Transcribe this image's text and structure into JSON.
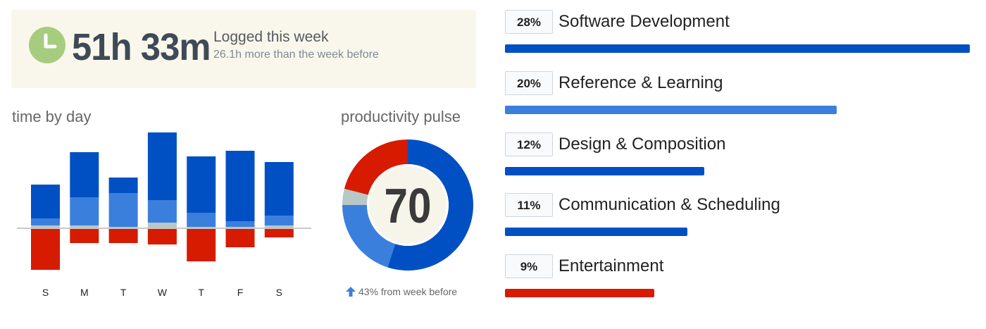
{
  "summary": {
    "total_time": "51h 33m",
    "label": "Logged this week",
    "comparison": "26.1h more than the week before",
    "icon": "clock-icon"
  },
  "time_by_day": {
    "title": "time by day"
  },
  "productivity_pulse": {
    "title": "productivity pulse",
    "score": "70",
    "change_text": "43% from week before",
    "change_icon": "arrow-up-icon"
  },
  "colors": {
    "very_productive": "#0050c4",
    "productive": "#3b7fdd",
    "neutral": "#b9c7c7",
    "unproductive": "#d61b00",
    "summary_bg": "#f9f7ec",
    "clock": "#a6cd7f"
  },
  "chart_data": [
    {
      "type": "bar",
      "stacked": true,
      "title": "time by day",
      "categories": [
        "S",
        "M",
        "T",
        "W",
        "T",
        "F",
        "S"
      ],
      "unit": "hours",
      "series": [
        {
          "key": "very_productive",
          "values": [
            2.4,
            3.2,
            1.1,
            4.8,
            4.0,
            5.0,
            3.8
          ]
        },
        {
          "key": "productive",
          "values": [
            0.5,
            2.0,
            2.4,
            1.6,
            1.0,
            0.4,
            0.7
          ]
        },
        {
          "key": "neutral",
          "values": [
            0.2,
            0.2,
            0.1,
            0.4,
            0.1,
            0.1,
            0.2
          ]
        },
        {
          "key": "unproductive",
          "values": [
            -2.9,
            -1.0,
            -1.0,
            -1.1,
            -2.3,
            -1.3,
            -0.6
          ]
        }
      ],
      "ylim": [
        -3.0,
        7.0
      ]
    },
    {
      "type": "pie",
      "donut": true,
      "title": "productivity pulse",
      "center_label": "70",
      "slices": [
        {
          "key": "very_productive",
          "value": 55
        },
        {
          "key": "productive",
          "value": 20
        },
        {
          "key": "neutral",
          "value": 4
        },
        {
          "key": "unproductive",
          "value": 21
        }
      ]
    },
    {
      "type": "bar",
      "orientation": "horizontal",
      "categories": [
        "Software Development",
        "Reference & Learning",
        "Design & Composition",
        "Communication & Scheduling",
        "Entertainment"
      ],
      "value_labels": [
        "28%",
        "20%",
        "12%",
        "11%",
        "9%"
      ],
      "values": [
        28,
        20,
        12,
        11,
        9
      ],
      "bar_colors": [
        "#0050c4",
        "#3b7fdd",
        "#0050c4",
        "#0050c4",
        "#d61b00"
      ],
      "xlim": [
        0,
        28
      ]
    }
  ]
}
